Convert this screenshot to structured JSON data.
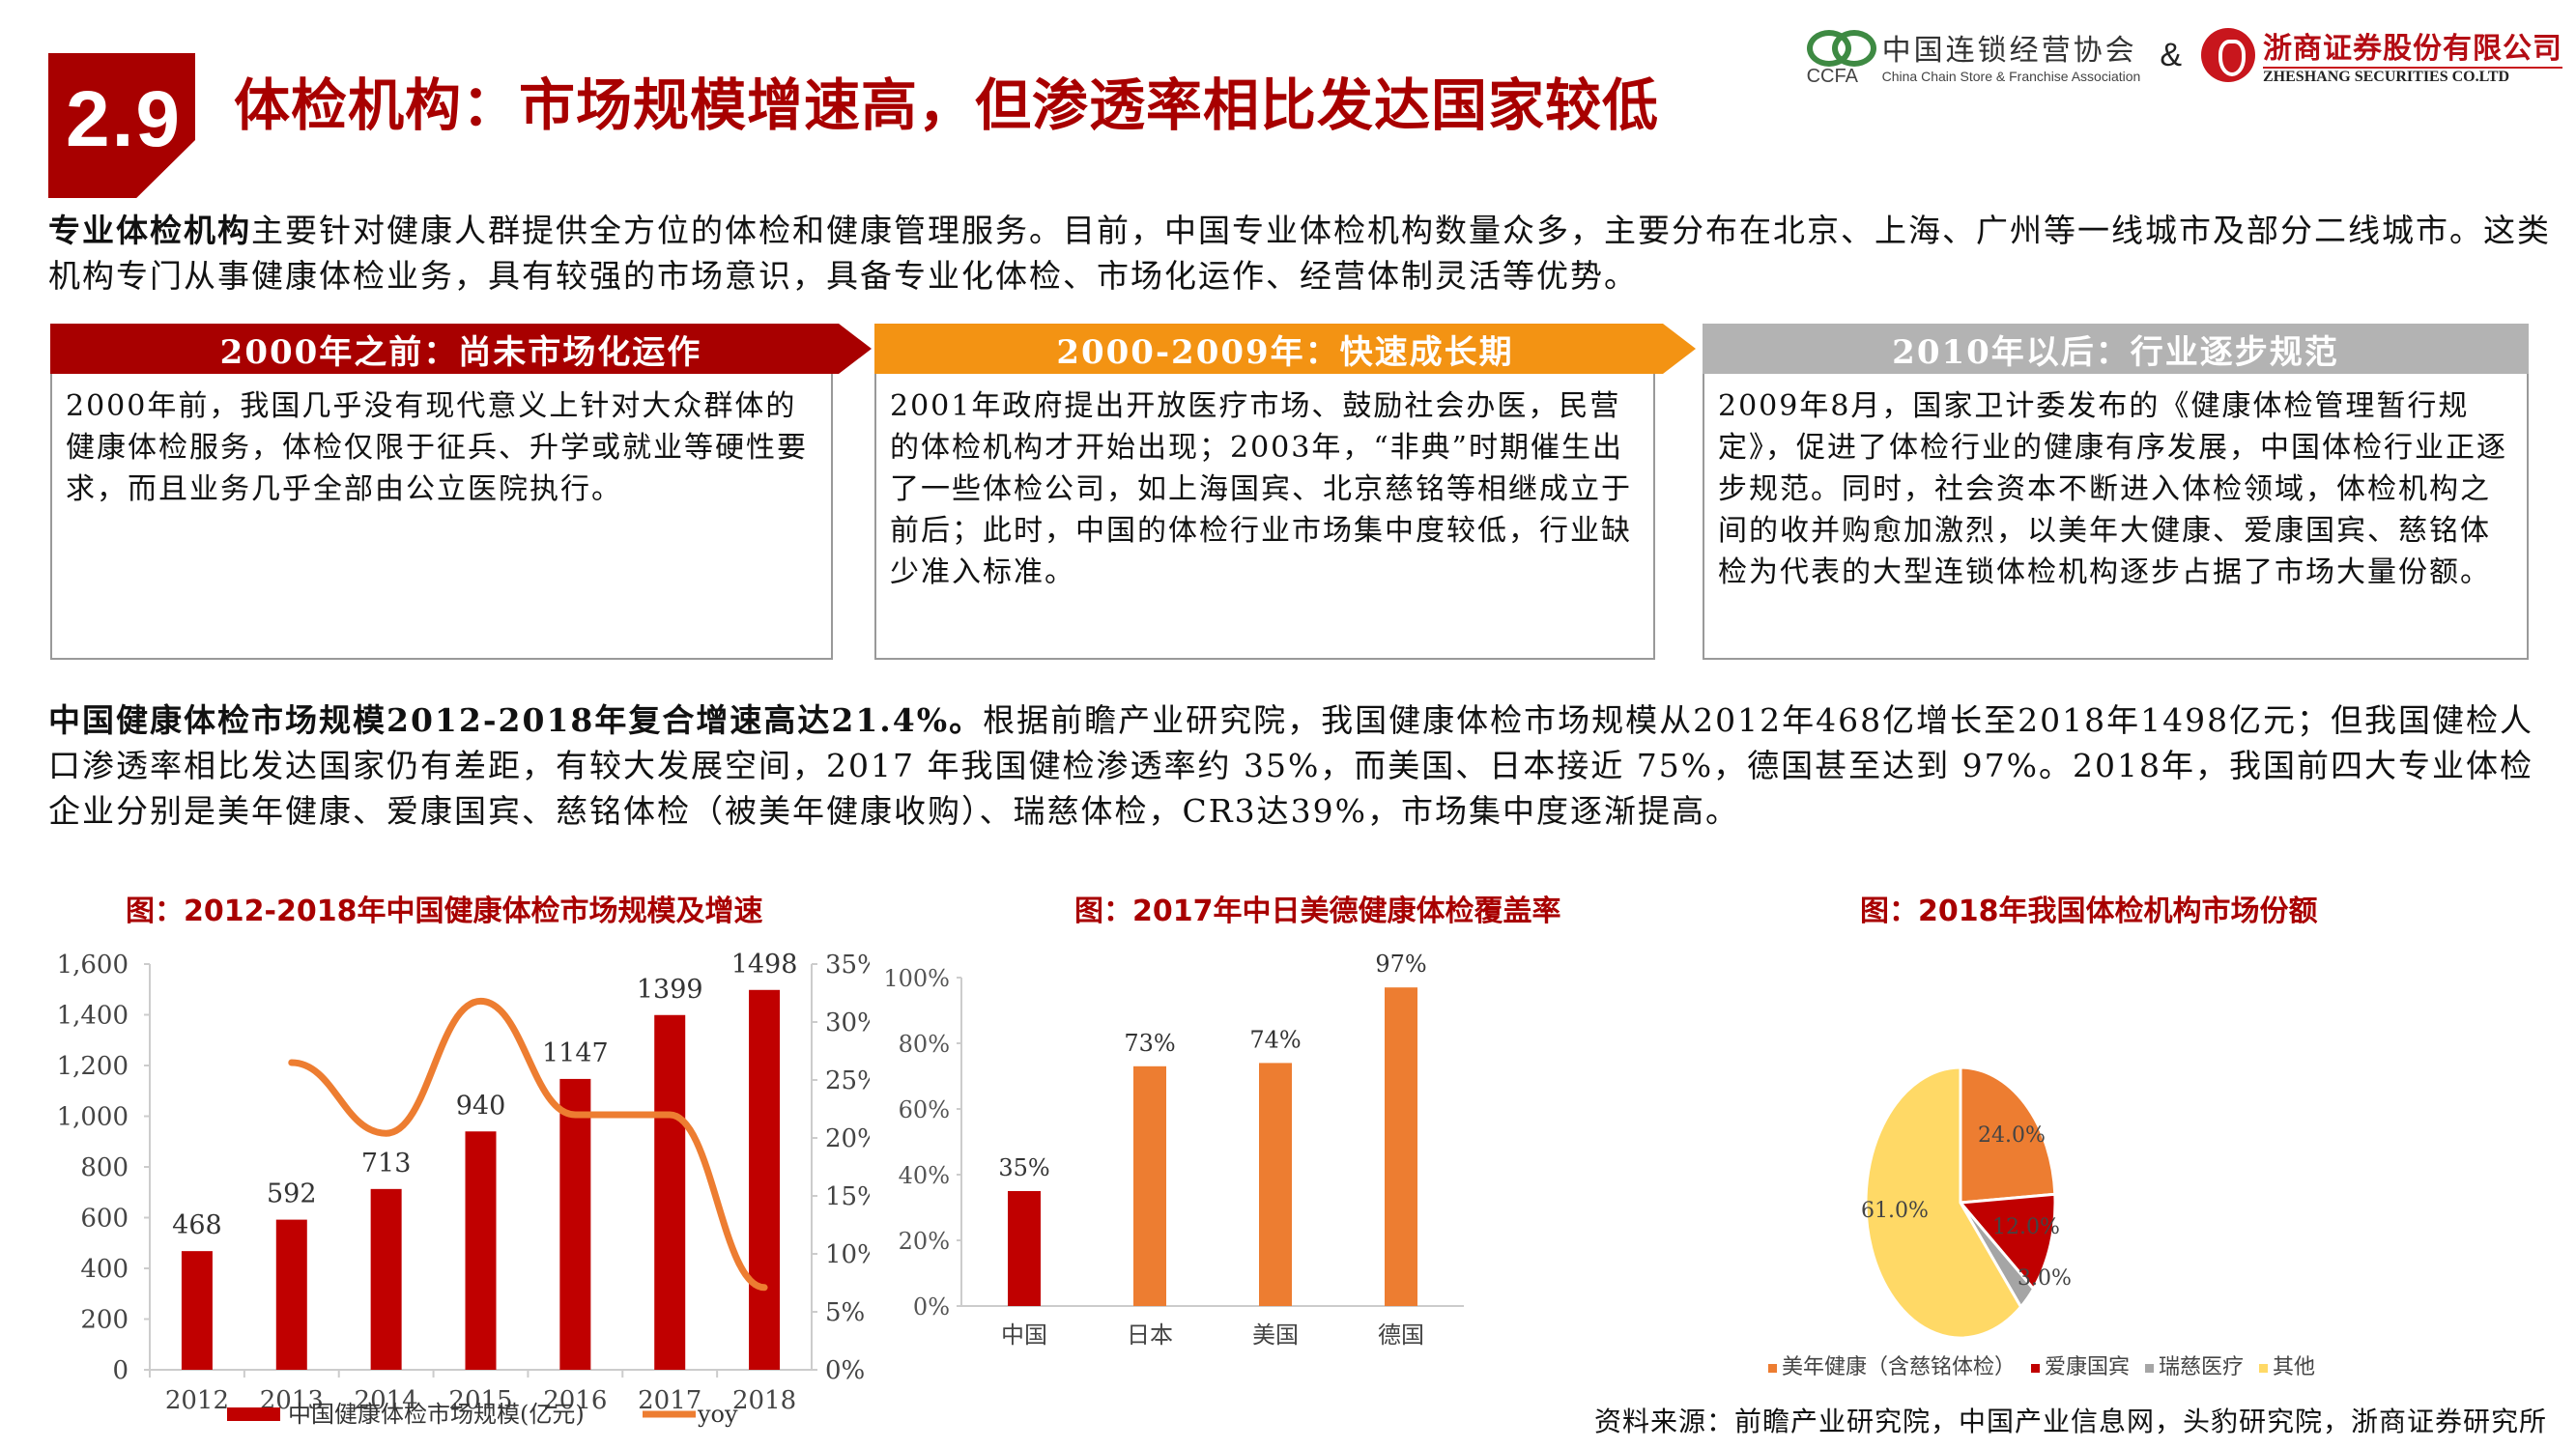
{
  "header": {
    "section_number": "2.9",
    "title": "体检机构：市场规模增速高，但渗透率相比发达国家较低",
    "logos": {
      "ccfa_cn": "中国连锁经营协会",
      "ccfa_en": "China Chain Store & Franchise Association",
      "ccfa_abbr": "CCFA",
      "ampersand": "&",
      "zheshang_cn": "浙商证券股份有限公司",
      "zheshang_en": "ZHESHANG SECURITIES CO.LTD"
    }
  },
  "intro": {
    "bold_lead": "专业体检机构",
    "text": "主要针对健康人群提供全方位的体检和健康管理服务。目前，中国专业体检机构数量众多，主要分布在北京、上海、广州等一线城市及部分二线城市。这类机构专门从事健康体检业务，具有较强的市场意识，具备专业化体检、市场化运作、经营体制灵活等优势。"
  },
  "timeline": [
    {
      "heading": "2000年之前：尚未市场化运作",
      "color": "#a80000",
      "text": "2000年前，我国几乎没有现代意义上针对大众群体的健康体检服务，体检仅限于征兵、升学或就业等硬性要求，而且业务几乎全部由公立医院执行。"
    },
    {
      "heading": "2000-2009年：快速成长期",
      "color": "#f39313",
      "text": "2001年政府提出开放医疗市场、鼓励社会办医，民营的体检机构才开始出现；2003年，“非典”时期催生出了一些体检公司，如上海国宾、北京慈铭等相继成立于前后；此时，中国的体检行业市场集中度较低，行业缺少准入标准。"
    },
    {
      "heading": "2010年以后：行业逐步规范",
      "color": "#b3b3b3",
      "text": "2009年8月，国家卫计委发布的《健康体检管理暂行规定》，促进了体检行业的健康有序发展，中国体检行业正逐步规范。同时，社会资本不断进入体检领域，体检机构之间的收并购愈加激烈，以美年大健康、爱康国宾、慈铭体检为代表的大型连锁体检机构逐步占据了市场大量份额。"
    }
  ],
  "market_para": {
    "bold_lead": "中国健康体检市场规模2012-2018年复合增速高达21.4%。",
    "text": "根据前瞻产业研究院，我国健康体检市场规模从2012年468亿增长至2018年1498亿元；但我国健检人口渗透率相比发达国家仍有差距，有较大发展空间，2017 年我国健检渗透率约 35%，而美国、日本接近 75%，德国甚至达到 97%。2018年，我国前四大专业体检企业分别是美年健康、爱康国宾、慈铭体检（被美年健康收购）、瑞慈体检，CR3达39%，市场集中度逐渐提高。"
  },
  "source": "资料来源：前瞻产业研究院，中国产业信息网，头豹研究院，浙商证券研究所",
  "chart_data": [
    {
      "type": "bar",
      "title": "图：2012-2018年中国健康体检市场规模及增速",
      "categories": [
        "2012",
        "2013",
        "2014",
        "2015",
        "2016",
        "2017",
        "2018"
      ],
      "series": [
        {
          "name": "中国健康体检市场规模(亿元)",
          "type": "bar",
          "axis": "left",
          "color": "#c00000",
          "values": [
            468,
            592,
            713,
            940,
            1147,
            1399,
            1498
          ]
        },
        {
          "name": "yoy",
          "type": "line",
          "axis": "right",
          "color": "#ed7d31",
          "values": [
            null,
            26.5,
            20.4,
            31.8,
            22.0,
            22.0,
            7.1
          ]
        }
      ],
      "y_left": {
        "min": 0,
        "max": 1600,
        "ticks": [
          "0",
          "200",
          "400",
          "600",
          "800",
          "1,000",
          "1,200",
          "1,400",
          "1,600"
        ]
      },
      "y_right": {
        "min": 0,
        "max": 35,
        "ticks": [
          "0%",
          "5%",
          "10%",
          "15%",
          "20%",
          "25%",
          "30%",
          "35%"
        ]
      },
      "data_labels": [
        "468",
        "592",
        "713",
        "940",
        "1147",
        "1399",
        "1498"
      ],
      "legend_position": "bottom"
    },
    {
      "type": "bar",
      "title": "图：2017年中日美德健康体检覆盖率",
      "categories": [
        "中国",
        "日本",
        "美国",
        "德国"
      ],
      "values": [
        35,
        73,
        74,
        97
      ],
      "data_labels": [
        "35%",
        "73%",
        "74%",
        "97%"
      ],
      "colors": [
        "#c00000",
        "#ed7d31",
        "#ed7d31",
        "#ed7d31"
      ],
      "ylim": [
        0,
        100
      ],
      "y_ticks": [
        "0%",
        "20%",
        "40%",
        "60%",
        "80%",
        "100%"
      ]
    },
    {
      "type": "pie",
      "title": "图：2018年我国体检机构市场份额",
      "labels": [
        "美年健康（含慈铭体检）",
        "爱康国宾",
        "瑞慈医疗",
        "其他"
      ],
      "values": [
        24.0,
        12.0,
        3.0,
        61.0
      ],
      "data_labels": [
        "24.0%",
        "12.0%",
        "3.0%",
        "61.0%"
      ],
      "colors": [
        "#ed7d31",
        "#c00000",
        "#a5a5a5",
        "#ffd966"
      ],
      "legend_position": "bottom"
    }
  ]
}
